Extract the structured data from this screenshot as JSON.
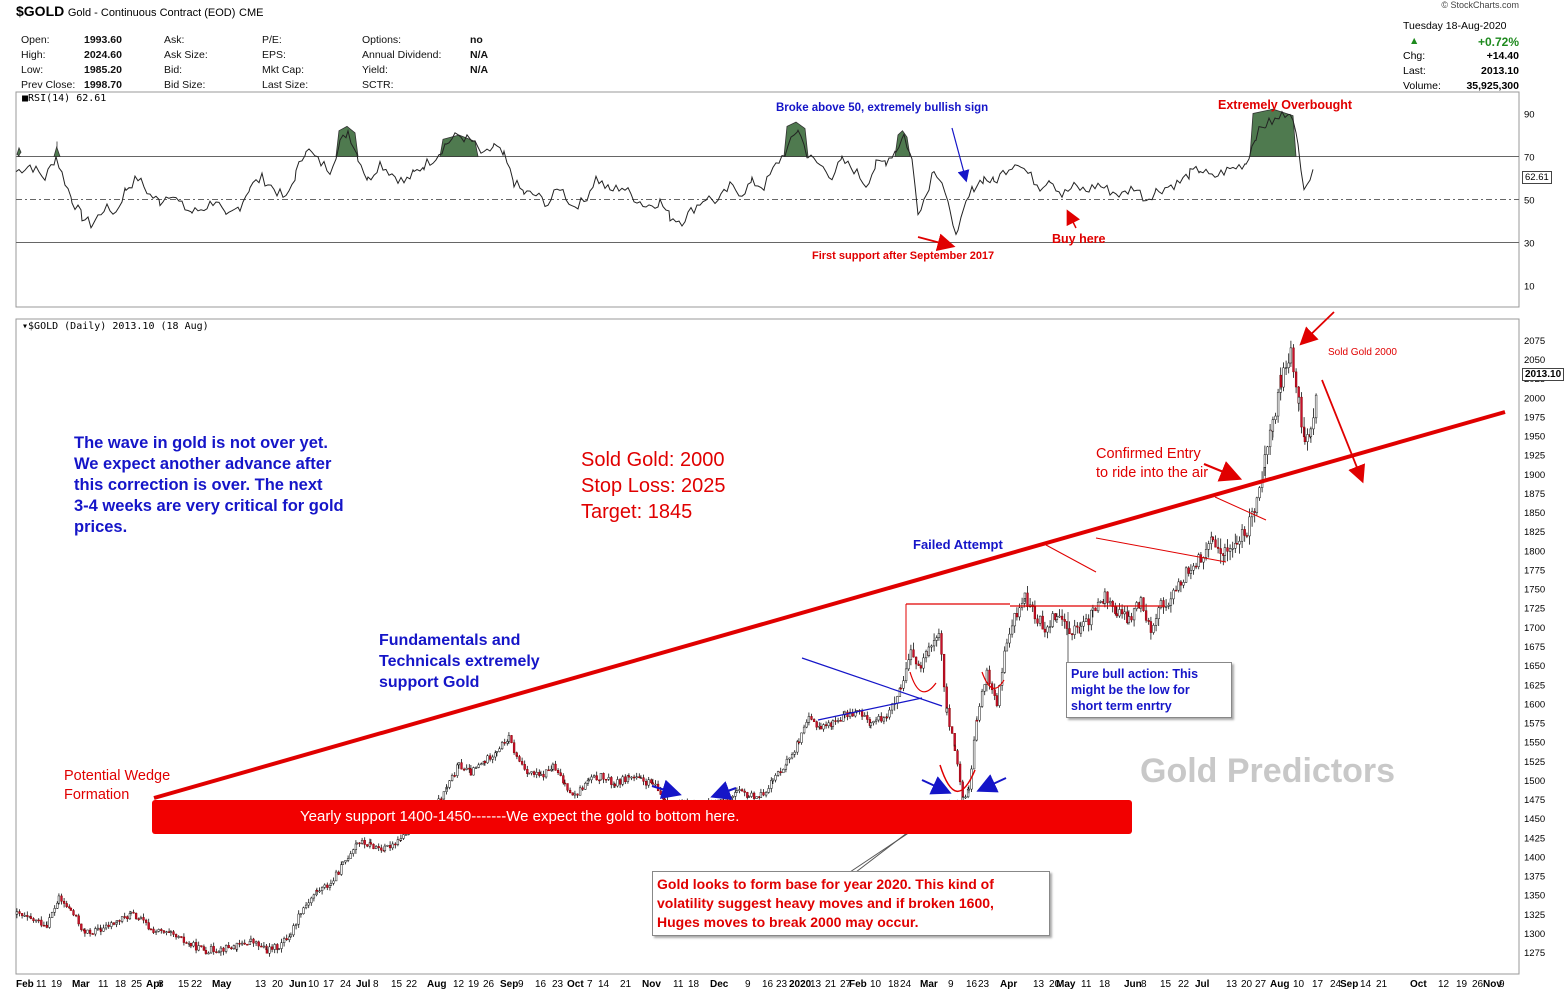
{
  "header": {
    "symbol": "$GOLD",
    "name": "Gold - Continuous Contract (EOD)",
    "exchange": "CME",
    "stats": [
      {
        "label": "Open:",
        "value": "1993.60"
      },
      {
        "label": "High:",
        "value": "2024.60"
      },
      {
        "label": "Low:",
        "value": "1985.20"
      },
      {
        "label": "Prev Close:",
        "value": "1998.70"
      },
      {
        "label": "Ask:",
        "value": ""
      },
      {
        "label": "Ask Size:",
        "value": ""
      },
      {
        "label": "Bid:",
        "value": ""
      },
      {
        "label": "Bid Size:",
        "value": ""
      },
      {
        "label": "P/E:",
        "value": ""
      },
      {
        "label": "EPS:",
        "value": ""
      },
      {
        "label": "Mkt Cap:",
        "value": ""
      },
      {
        "label": "Last Size:",
        "value": ""
      },
      {
        "label": "Options:",
        "value": "no"
      },
      {
        "label": "Annual Dividend:",
        "value": "N/A"
      },
      {
        "label": "Yield:",
        "value": "N/A"
      },
      {
        "label": "SCTR:",
        "value": ""
      }
    ],
    "date": "Tuesday  18-Aug-2020",
    "credit": "© StockCharts.com",
    "change_pct": "+0.72%",
    "chg_label": "Chg:",
    "chg": "+14.40",
    "last_label": "Last:",
    "last": "2013.10",
    "volume_label": "Volume:",
    "volume": "35,925,300"
  },
  "rsi_panel": {
    "label": "RSI(14) 62.61",
    "current": "62.61",
    "levels": [
      90,
      70,
      50,
      30,
      10
    ],
    "annotations": {
      "broke": "Broke above 50, extremely bullish sign",
      "overbought": "Extremely Overbought",
      "buy": "Buy here",
      "first_support": "First support after September 2017"
    }
  },
  "price_panel": {
    "label": "$GOLD (Daily) 2013.10 (18 Aug)",
    "current": "2013.10",
    "yticks": [
      1275,
      1300,
      1325,
      1350,
      1375,
      1400,
      1425,
      1450,
      1475,
      1500,
      1525,
      1550,
      1575,
      1600,
      1625,
      1650,
      1675,
      1700,
      1725,
      1750,
      1775,
      1800,
      1825,
      1850,
      1875,
      1900,
      1925,
      1950,
      1975,
      2000,
      2025,
      2050,
      2075
    ],
    "xticks": [
      {
        "t": "Feb",
        "b": true
      },
      {
        "t": "11"
      },
      {
        "t": "19"
      },
      {
        "t": "Mar",
        "b": true
      },
      {
        "t": "11"
      },
      {
        "t": "18"
      },
      {
        "t": "25"
      },
      {
        "t": "Apr",
        "b": true
      },
      {
        "t": "8"
      },
      {
        "t": "15"
      },
      {
        "t": "22"
      },
      {
        "t": "May",
        "b": true
      },
      {
        "t": "13"
      },
      {
        "t": "20"
      },
      {
        "t": "Jun",
        "b": true
      },
      {
        "t": "10"
      },
      {
        "t": "17"
      },
      {
        "t": "24"
      },
      {
        "t": "Jul",
        "b": true
      },
      {
        "t": "8"
      },
      {
        "t": "15"
      },
      {
        "t": "22"
      },
      {
        "t": "Aug",
        "b": true
      },
      {
        "t": "12"
      },
      {
        "t": "19"
      },
      {
        "t": "26"
      },
      {
        "t": "Sep",
        "b": true
      },
      {
        "t": "9"
      },
      {
        "t": "16"
      },
      {
        "t": "23"
      },
      {
        "t": "Oct",
        "b": true
      },
      {
        "t": "7"
      },
      {
        "t": "14"
      },
      {
        "t": "21"
      },
      {
        "t": "Nov",
        "b": true
      },
      {
        "t": "11"
      },
      {
        "t": "18"
      },
      {
        "t": "Dec",
        "b": true
      },
      {
        "t": "9"
      },
      {
        "t": "16"
      },
      {
        "t": "23"
      },
      {
        "t": "2020",
        "b": true
      },
      {
        "t": "13"
      },
      {
        "t": "21"
      },
      {
        "t": "27"
      },
      {
        "t": "Feb",
        "b": true
      },
      {
        "t": "10"
      },
      {
        "t": "18"
      },
      {
        "t": "24"
      },
      {
        "t": "Mar",
        "b": true
      },
      {
        "t": "9"
      },
      {
        "t": "16"
      },
      {
        "t": "23"
      },
      {
        "t": "Apr",
        "b": true
      },
      {
        "t": "13"
      },
      {
        "t": "20"
      },
      {
        "t": "May",
        "b": true
      },
      {
        "t": "11"
      },
      {
        "t": "18"
      },
      {
        "t": "Jun",
        "b": true
      },
      {
        "t": "8"
      },
      {
        "t": "15"
      },
      {
        "t": "22"
      },
      {
        "t": "Jul",
        "b": true
      },
      {
        "t": "13"
      },
      {
        "t": "20"
      },
      {
        "t": "27"
      },
      {
        "t": "Aug",
        "b": true
      },
      {
        "t": "10"
      },
      {
        "t": "17"
      },
      {
        "t": "24"
      },
      {
        "t": "Sep",
        "b": true
      },
      {
        "t": "14"
      },
      {
        "t": "21"
      },
      {
        "t": "Oct",
        "b": true
      },
      {
        "t": "12"
      },
      {
        "t": "19"
      },
      {
        "t": "26"
      },
      {
        "t": "Nov",
        "b": true
      },
      {
        "t": "9"
      }
    ],
    "annotations": {
      "wave": "The wave in gold is not over yet.\nWe expect another advance after\nthis correction is over. The next\n3-4 weeks are very critical for gold\nprices.",
      "trade": "Sold Gold: 2000\nStop Loss: 2025\nTarget: 1845",
      "sold_small": "Sold Gold 2000",
      "confirmed": "Confirmed Entry\nto ride into the air",
      "failed": "Failed Attempt",
      "fundamentals": "Fundamentals and\nTechnicals extremely\nsupport Gold",
      "wedge": "Potential Wedge\nFormation",
      "yearly": "Yearly support 1400-1450-------We expect the gold to bottom here.",
      "pure_bull": "Pure bull action: This\nmight be the low for\nshort term enrtry",
      "base": "Gold looks to form base for year 2020. This kind of\nvolatility suggest heavy moves and if broken 1600,\nHuges moves to break 2000 may occur.",
      "watermark": "Gold Predictors"
    }
  },
  "colors": {
    "red": "#e00000",
    "blue": "#1515c8",
    "green_fill": "#4f7a4f",
    "watermark": "#c8c8c8"
  },
  "chart_data": {
    "type": "candlestick",
    "title": "$GOLD (Daily)",
    "ylim": [
      1260,
      2090
    ],
    "rsi_ylim": [
      0,
      100
    ],
    "rsi_last": 62.61,
    "close_series": {
      "x": [
        "Feb 2019",
        "Mar 2019",
        "Apr 2019",
        "May 2019",
        "Jun 2019",
        "Jul 2019",
        "Aug 2019",
        "Sep 2019",
        "Oct 2019",
        "Nov 2019",
        "Dec 2019",
        "Jan 2020",
        "Feb 2020",
        "Mar 2020",
        "Apr 2020",
        "May 2020",
        "Jun 2020",
        "Jul 2020",
        "Aug 2020",
        "18 Aug 2020"
      ],
      "values": [
        1325,
        1300,
        1290,
        1285,
        1345,
        1410,
        1525,
        1515,
        1495,
        1465,
        1480,
        1585,
        1590,
        1485,
        1700,
        1735,
        1745,
        1850,
        2050,
        2013.1
      ]
    },
    "trendline": {
      "from": [
        "Apr 2019",
        1450
      ],
      "to": [
        "Sep 2020",
        1960
      ]
    },
    "support_zone": [
      1400,
      1450
    ]
  }
}
